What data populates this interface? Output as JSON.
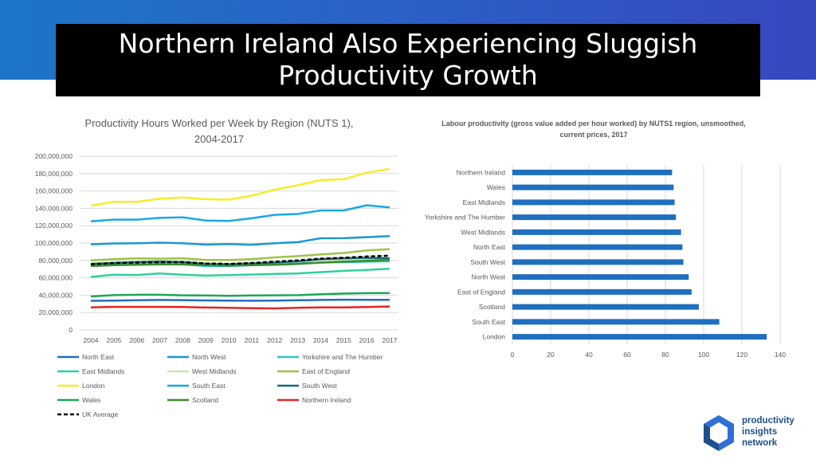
{
  "slide": {
    "title_line1": "Northern Ireland Also Experiencing Sluggish",
    "title_line2": "Productivity Growth",
    "logo_line1": "productivity",
    "logo_line2": "insights",
    "logo_line3": "network",
    "colors": {
      "band": "#2a62c6",
      "title_bg": "#000000",
      "logo": "#1f4e8c"
    }
  },
  "chart_data": [
    {
      "type": "line",
      "title_line1": "Productivity Hours Worked per Week by Region (NUTS 1),",
      "title_line2": "2004-2017",
      "xlabel": "",
      "ylabel": "",
      "ylim": [
        0,
        200000000
      ],
      "yticks": [
        0,
        20000000,
        40000000,
        60000000,
        80000000,
        100000000,
        120000000,
        140000000,
        160000000,
        180000000,
        200000000
      ],
      "ytick_labels": [
        "0",
        "20,000,000",
        "40,000,000",
        "60,000,000",
        "80,000,000",
        "100,000,000",
        "120,000,000",
        "140,000,000",
        "160,000,000",
        "180,000,000",
        "200,000,000"
      ],
      "categories": [
        "2004",
        "2005",
        "2006",
        "2007",
        "2008",
        "2009",
        "2010",
        "2011",
        "2012",
        "2013",
        "2014",
        "2015",
        "2016",
        "2017"
      ],
      "grid": true,
      "legend_position": "bottom",
      "series": [
        {
          "name": "North East",
          "color": "#1f6fbf",
          "dashed": false,
          "values": [
            33500000,
            33800000,
            34200000,
            34500000,
            34300000,
            33900000,
            33700000,
            33600000,
            33800000,
            34100000,
            34500000,
            34800000,
            34700000,
            34600000
          ]
        },
        {
          "name": "North West",
          "color": "#1a97d4",
          "dashed": false,
          "values": [
            98500000,
            99500000,
            99800000,
            100500000,
            99800000,
            98300000,
            98800000,
            98100000,
            99800000,
            101000000,
            105500000,
            105600000,
            106800000,
            108000000
          ]
        },
        {
          "name": "Yorkshire and The Humber",
          "color": "#2bc6c6",
          "dashed": false,
          "values": [
            74000000,
            75000000,
            75500000,
            76000000,
            75500000,
            73500000,
            73500000,
            74500000,
            75500000,
            76500000,
            77500000,
            78000000,
            78500000,
            79000000
          ]
        },
        {
          "name": "East Midlands",
          "color": "#2fd19a",
          "dashed": false,
          "values": [
            61000000,
            63500000,
            63200000,
            65000000,
            63500000,
            62500000,
            63000000,
            63800000,
            64500000,
            65000000,
            66500000,
            68000000,
            69000000,
            70500000
          ]
        },
        {
          "name": "West Midlands",
          "color": "#c9e5b5",
          "dashed": false,
          "values": [
            77000000,
            78000000,
            79000000,
            79500000,
            79000000,
            76500000,
            76000000,
            77000000,
            77500000,
            78500000,
            80500000,
            80500000,
            81000000,
            82000000
          ]
        },
        {
          "name": "East of England",
          "color": "#9cc448",
          "dashed": false,
          "values": [
            80000000,
            81500000,
            82500000,
            82000000,
            82500000,
            80500000,
            80500000,
            81500000,
            83500000,
            85000000,
            87000000,
            88500000,
            91500000,
            93000000
          ]
        },
        {
          "name": "London",
          "color": "#f5ee2a",
          "dashed": false,
          "values": [
            143000000,
            147500000,
            147500000,
            151000000,
            152500000,
            150500000,
            150000000,
            154500000,
            161500000,
            166500000,
            172500000,
            173500000,
            181000000,
            185500000
          ]
        },
        {
          "name": "South East",
          "color": "#18a8e8",
          "dashed": false,
          "values": [
            125000000,
            127000000,
            127000000,
            129000000,
            129500000,
            126000000,
            125500000,
            128500000,
            132500000,
            133500000,
            137500000,
            137500000,
            143500000,
            141000000
          ]
        },
        {
          "name": "South West",
          "color": "#0d6e73",
          "dashed": false,
          "values": [
            76000000,
            77000000,
            78000000,
            78500000,
            78000000,
            76000000,
            75500000,
            76500000,
            77500000,
            79000000,
            81500000,
            82500000,
            83000000,
            82500000
          ]
        },
        {
          "name": "Wales",
          "color": "#1aa857",
          "dashed": false,
          "values": [
            38500000,
            40000000,
            40500000,
            40500000,
            39800000,
            39600000,
            39300000,
            39700000,
            39800000,
            40000000,
            41000000,
            41800000,
            42300000,
            42500000
          ]
        },
        {
          "name": "Scotland",
          "color": "#3c8a2e",
          "dashed": false,
          "values": [
            73500000,
            74500000,
            75000000,
            75500000,
            75500000,
            74500000,
            74000000,
            74500000,
            75000000,
            76000000,
            77500000,
            78500000,
            79500000,
            80500000
          ]
        },
        {
          "name": "Northern Ireland",
          "color": "#e52420",
          "dashed": false,
          "values": [
            26000000,
            26500000,
            26500000,
            26500000,
            26300000,
            25800000,
            25500000,
            25000000,
            24800000,
            25500000,
            26000000,
            25900000,
            26300000,
            27000000
          ]
        },
        {
          "name": "UK Average",
          "color": "#000000",
          "dashed": true,
          "values": [
            75500000,
            77000000,
            77500000,
            78000000,
            78000000,
            76500000,
            76000000,
            77000000,
            78500000,
            80000000,
            82000000,
            83000000,
            84500000,
            85500000
          ]
        }
      ]
    },
    {
      "type": "bar",
      "orientation": "horizontal",
      "title_line1": "Labour productivity (gross value added per hour worked) by NUTS1 region, unsmoothed,",
      "title_line2": "current prices, 2017",
      "categories": [
        "Northern Ireland",
        "Wales",
        "East Midlands",
        "Yorkshire and The Humber",
        "West Midlands",
        "North East",
        "South West",
        "North West",
        "East of England",
        "Scotland",
        "South East",
        "London"
      ],
      "values": [
        83.5,
        84.3,
        84.8,
        85.5,
        88.2,
        88.9,
        89.4,
        92.2,
        93.7,
        97.5,
        108.2,
        133.0
      ],
      "xlim": [
        0,
        140
      ],
      "xticks": [
        0,
        20,
        40,
        60,
        80,
        100,
        120,
        140
      ],
      "xtick_labels": [
        "0",
        "20",
        "40",
        "60",
        "80",
        "100",
        "120",
        "140"
      ],
      "grid": true,
      "color": "#1f6fbf"
    }
  ]
}
